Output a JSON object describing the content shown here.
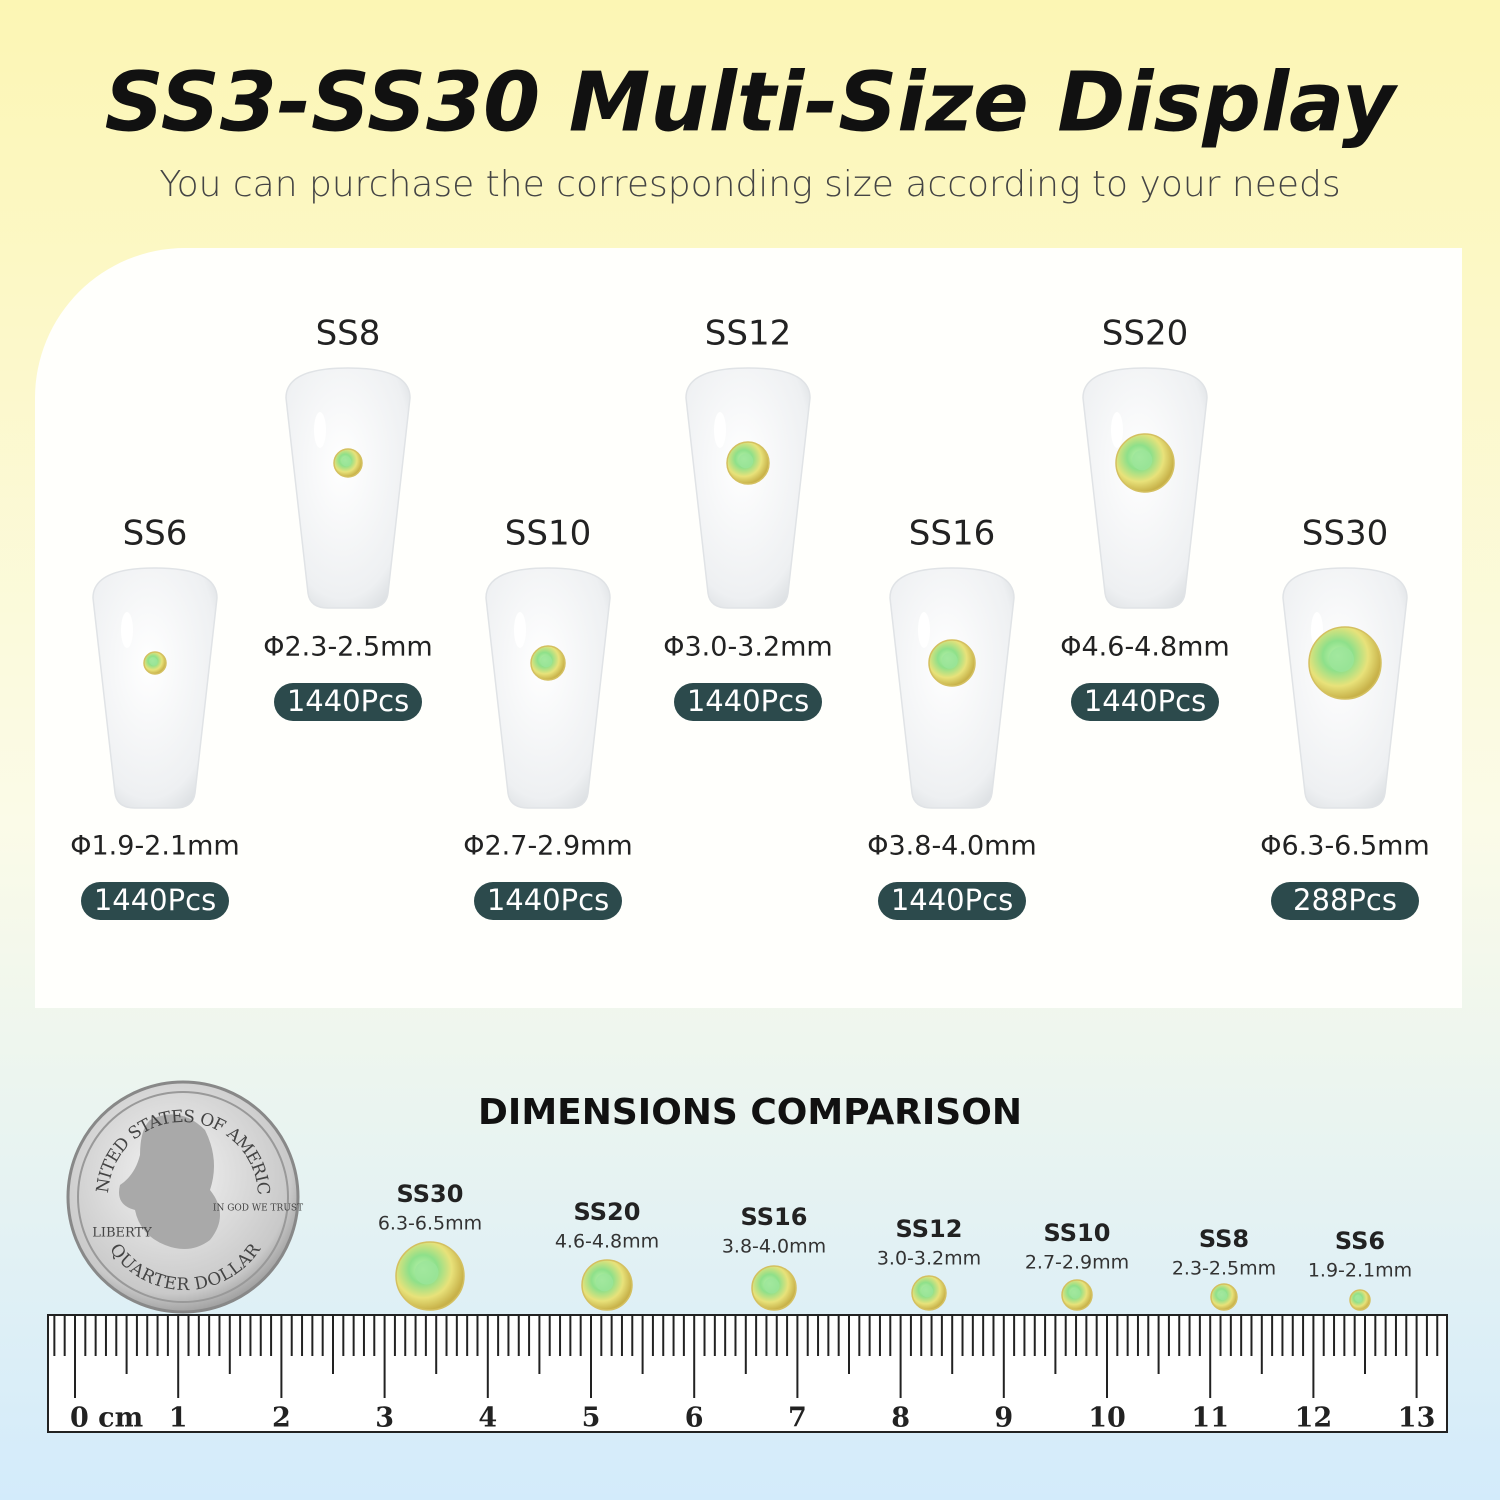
{
  "header": {
    "title": "SS3-SS30 Multi-Size Display",
    "subtitle": "You can purchase the corresponding size according to your needs"
  },
  "nails": [
    {
      "label": "SS6",
      "diameter": "Φ1.9-2.1mm",
      "count": "1440Pcs"
    },
    {
      "label": "SS8",
      "diameter": "Φ2.3-2.5mm",
      "count": "1440Pcs"
    },
    {
      "label": "SS10",
      "diameter": "Φ2.7-2.9mm",
      "count": "1440Pcs"
    },
    {
      "label": "SS12",
      "diameter": "Φ3.0-3.2mm",
      "count": "1440Pcs"
    },
    {
      "label": "SS16",
      "diameter": "Φ3.8-4.0mm",
      "count": "1440Pcs"
    },
    {
      "label": "SS20",
      "diameter": "Φ4.6-4.8mm",
      "count": "1440Pcs"
    },
    {
      "label": "SS30",
      "diameter": "Φ6.3-6.5mm",
      "count": "288Pcs"
    }
  ],
  "comparison": {
    "title": "DIMENSIONS COMPARISON",
    "items": [
      {
        "label": "SS30",
        "size": "6.3-6.5mm"
      },
      {
        "label": "SS20",
        "size": "4.6-4.8mm"
      },
      {
        "label": "SS16",
        "size": "3.8-4.0mm"
      },
      {
        "label": "SS12",
        "size": "3.0-3.2mm"
      },
      {
        "label": "SS10",
        "size": "2.7-2.9mm"
      },
      {
        "label": "SS8",
        "size": "2.3-2.5mm"
      },
      {
        "label": "SS6",
        "size": "1.9-2.1mm"
      }
    ],
    "ruler_labels": [
      "0 cm",
      "1",
      "2",
      "3",
      "4",
      "5",
      "6",
      "7",
      "8",
      "9",
      "10",
      "11",
      "12",
      "13"
    ],
    "coin": {
      "top": "UNITED STATES OF AMERICA",
      "left": "LIBERTY",
      "bottom": "QUARTER DOLLAR",
      "motto": "IN GOD WE TRUST"
    }
  }
}
